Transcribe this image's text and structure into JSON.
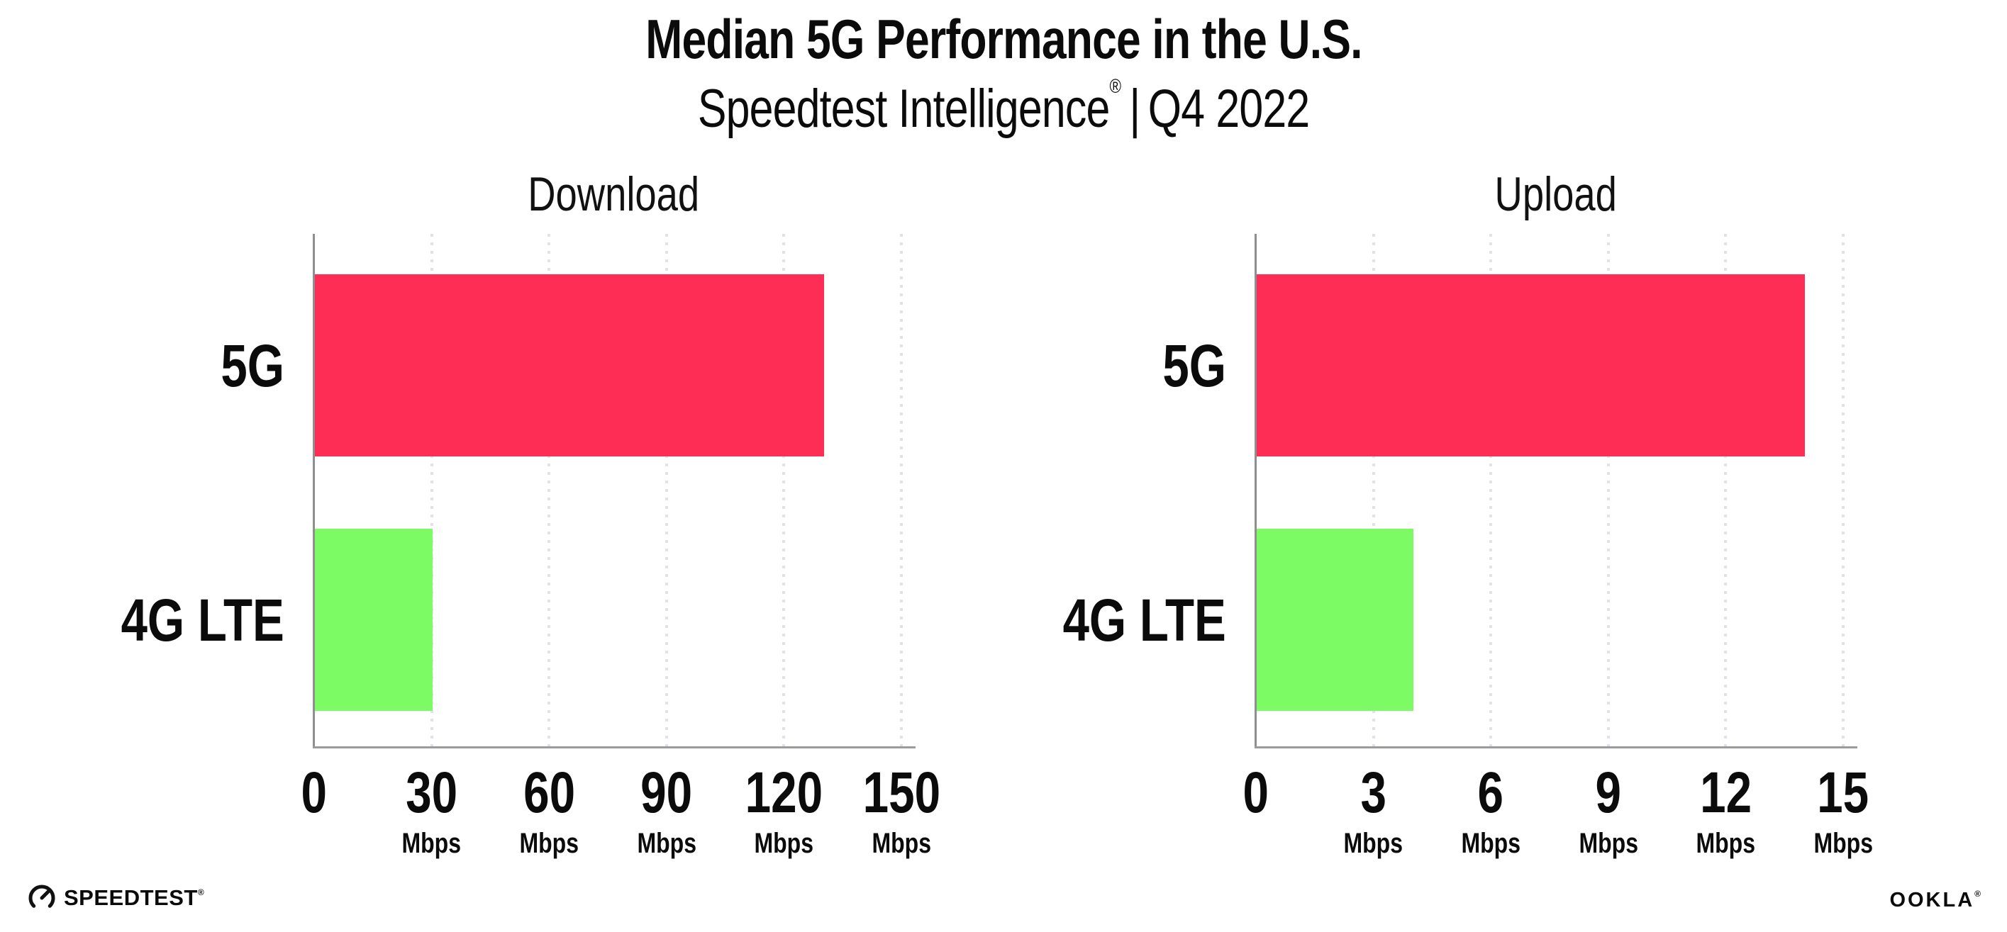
{
  "header": {
    "title": "Median 5G Performance in the U.S.",
    "subtitle": {
      "brand": "Speedtest Intelligence",
      "reg": "®",
      "rest": " | Q4 2022"
    }
  },
  "chart_data": [
    {
      "type": "bar",
      "orientation": "horizontal",
      "title": "Download",
      "categories": [
        "5G",
        "4G LTE"
      ],
      "values": [
        130,
        30
      ],
      "unit": "Mbps",
      "xlim": [
        0,
        150
      ],
      "xticks": [
        0,
        30,
        60,
        90,
        120,
        150
      ],
      "bar_colors": [
        "#fe2d55",
        "#7dfb64"
      ],
      "grid": "dotted vertical gridlines at each tick, no gridline at 0",
      "legend": "none",
      "data_labels": "none"
    },
    {
      "type": "bar",
      "orientation": "horizontal",
      "title": "Upload",
      "categories": [
        "5G",
        "4G LTE"
      ],
      "values": [
        14,
        4
      ],
      "unit": "Mbps",
      "xlim": [
        0,
        15
      ],
      "xticks": [
        0,
        3,
        6,
        9,
        12,
        15
      ],
      "bar_colors": [
        "#fe2d55",
        "#7dfb64"
      ],
      "grid": "dotted vertical gridlines at each tick, no gridline at 0",
      "legend": "none",
      "data_labels": "none"
    }
  ],
  "footer": {
    "speedtest": {
      "label": "SPEEDTEST",
      "reg": "®"
    },
    "ookla": {
      "label": "OOKLA",
      "reg": "®"
    }
  },
  "colors": {
    "bar_5g": "#fe2d55",
    "bar_4g_lte": "#7dfb64",
    "gridline": "#e1e1ec",
    "axis": "#8f8f8f",
    "text": "#0b0b0b",
    "background": "#ffffff"
  }
}
